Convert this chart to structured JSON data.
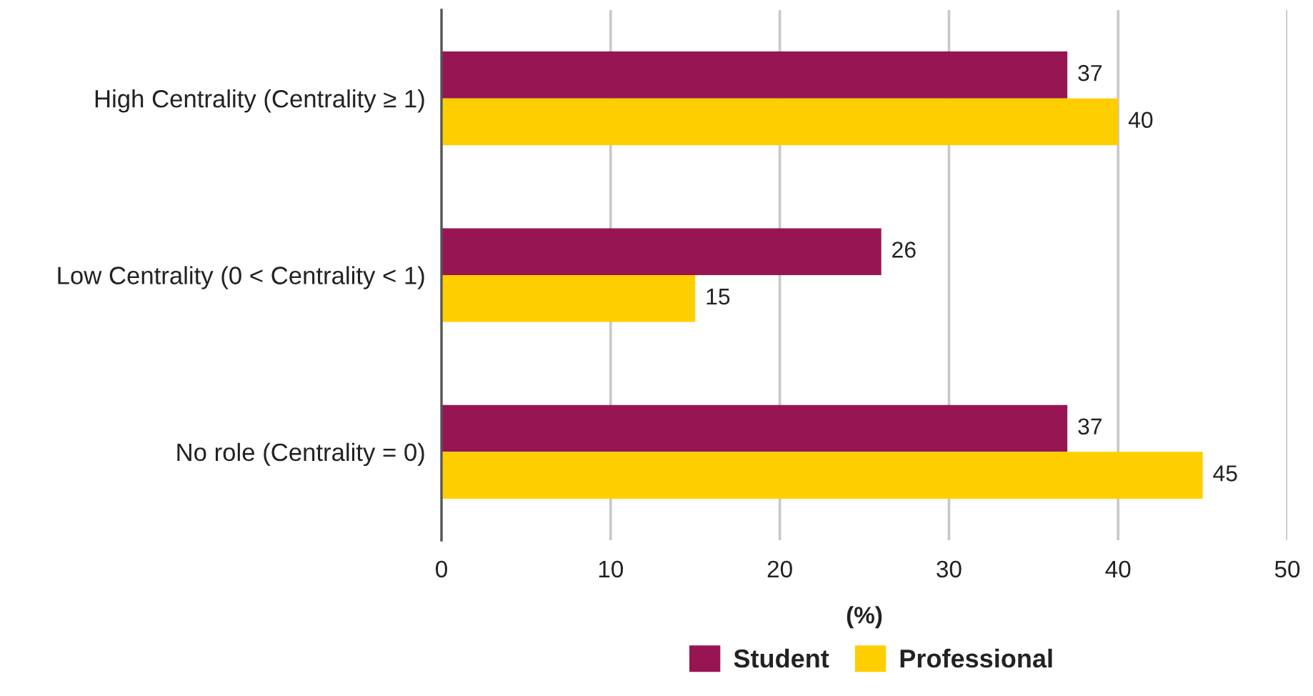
{
  "chart_data": {
    "type": "bar",
    "orientation": "horizontal",
    "categories": [
      "High Centrality (Centrality ≥ 1)",
      "Low Centrality (0 < Centrality < 1)",
      "No role (Centrality = 0)"
    ],
    "series": [
      {
        "name": "Student",
        "color": "#971552",
        "values": [
          37,
          26,
          37
        ]
      },
      {
        "name": "Professional",
        "color": "#ffce00",
        "values": [
          40,
          15,
          45
        ]
      }
    ],
    "xlim": [
      0,
      50
    ],
    "xticks": [
      0,
      10,
      20,
      30,
      40,
      50
    ],
    "xlabel": "(%)",
    "grid": "x",
    "legend": "bottom",
    "data_labels": true
  }
}
